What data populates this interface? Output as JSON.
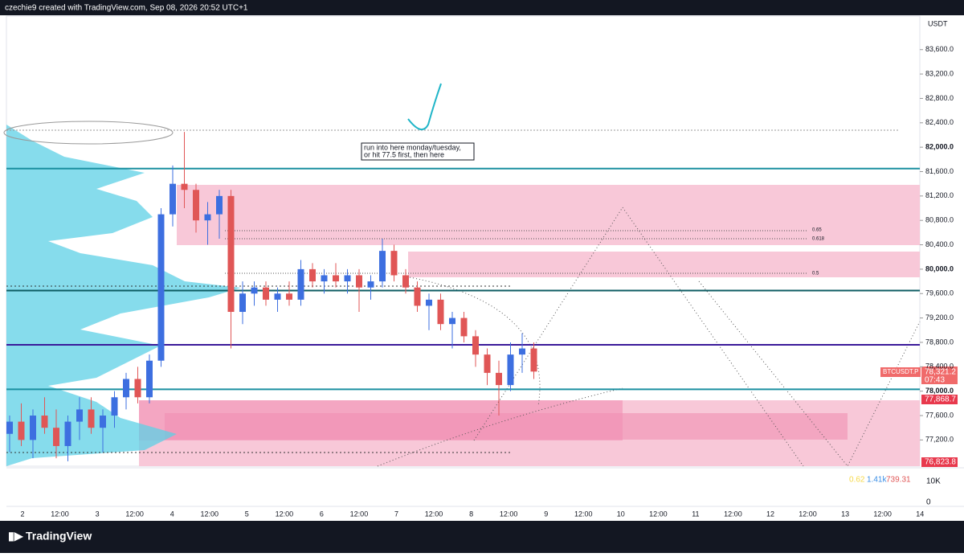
{
  "header": "czechie9 created with TradingView.com, Sep 08, 2026 20:52 UTC+1",
  "footer": "TradingView",
  "chart_data": {
    "type": "candlestick",
    "currency": "USDT",
    "ylim": [
      76770,
      84150
    ],
    "yticks": [
      {
        "value": 77200,
        "label": "77,200.0"
      },
      {
        "value": 77600,
        "label": "77,600.0"
      },
      {
        "value": 78000,
        "label": "78,000.0"
      },
      {
        "value": 78400,
        "label": "78,400.0"
      },
      {
        "value": 78800,
        "label": "78,800.0"
      },
      {
        "value": 79200,
        "label": "79,200.0"
      },
      {
        "value": 79600,
        "label": "79,600.0"
      },
      {
        "value": 80000,
        "label": "80,000.0"
      },
      {
        "value": 80400,
        "label": "80,400.0"
      },
      {
        "value": 80800,
        "label": "80,800.0"
      },
      {
        "value": 81200,
        "label": "81,200.0"
      },
      {
        "value": 81600,
        "label": "81,600.0"
      },
      {
        "value": 82000,
        "label": "82,000.0"
      },
      {
        "value": 82400,
        "label": "82,400.0"
      },
      {
        "value": 82800,
        "label": "82,800.0"
      },
      {
        "value": 83200,
        "label": "83,200.0"
      },
      {
        "value": 83600,
        "label": "83,600.0"
      }
    ],
    "time_labels": [
      "2",
      "12:00",
      "3",
      "12:00",
      "4",
      "12:00",
      "5",
      "12:00",
      "6",
      "12:00",
      "7",
      "12:00",
      "8",
      "12:00",
      "9",
      "12:00",
      "10",
      "12:00",
      "11",
      "12:00",
      "12",
      "12:00",
      "13",
      "12:00",
      "14"
    ],
    "up_color": "#3d6fe0",
    "down_color": "#e05656",
    "ohlc": [
      [
        77300,
        77600,
        77000,
        77500
      ],
      [
        77500,
        77800,
        77100,
        77200
      ],
      [
        77200,
        77700,
        76900,
        77600
      ],
      [
        77600,
        77900,
        77300,
        77400
      ],
      [
        77400,
        77700,
        76900,
        77100
      ],
      [
        77100,
        77600,
        76850,
        77500
      ],
      [
        77500,
        77900,
        77200,
        77700
      ],
      [
        77700,
        77900,
        77300,
        77400
      ],
      [
        77400,
        77700,
        77000,
        77600
      ],
      [
        77600,
        78000,
        77400,
        77900
      ],
      [
        77900,
        78300,
        77700,
        78200
      ],
      [
        78200,
        78400,
        77800,
        77900
      ],
      [
        77900,
        78600,
        77800,
        78500
      ],
      [
        78500,
        81000,
        78400,
        80900
      ],
      [
        80900,
        81700,
        80700,
        81400
      ],
      [
        81400,
        82250,
        81000,
        81300
      ],
      [
        81300,
        81400,
        80600,
        80800
      ],
      [
        80800,
        81100,
        80400,
        80900
      ],
      [
        80900,
        81300,
        80500,
        81200
      ],
      [
        81200,
        81300,
        78700,
        79300
      ],
      [
        79300,
        79800,
        79100,
        79600
      ],
      [
        79600,
        79800,
        79400,
        79700
      ],
      [
        79700,
        79800,
        79400,
        79500
      ],
      [
        79500,
        79700,
        79300,
        79600
      ],
      [
        79600,
        79800,
        79400,
        79500
      ],
      [
        79500,
        80150,
        79400,
        80000
      ],
      [
        80000,
        80100,
        79700,
        79800
      ],
      [
        79800,
        80000,
        79600,
        79900
      ],
      [
        79900,
        80100,
        79700,
        79800
      ],
      [
        79800,
        80000,
        79600,
        79900
      ],
      [
        79900,
        80000,
        79300,
        79700
      ],
      [
        79700,
        79900,
        79500,
        79800
      ],
      [
        79800,
        80500,
        79700,
        80300
      ],
      [
        80300,
        80400,
        79800,
        79900
      ],
      [
        79900,
        80000,
        79600,
        79700
      ],
      [
        79700,
        79800,
        79300,
        79400
      ],
      [
        79400,
        79600,
        79000,
        79500
      ],
      [
        79500,
        79600,
        79000,
        79100
      ],
      [
        79100,
        79300,
        78700,
        79200
      ],
      [
        79200,
        79300,
        78800,
        78900
      ],
      [
        78900,
        79000,
        78400,
        78600
      ],
      [
        78600,
        78700,
        78100,
        78300
      ],
      [
        78300,
        78500,
        77600,
        78100
      ],
      [
        78100,
        78800,
        78000,
        78600
      ],
      [
        78600,
        78950,
        78300,
        78700
      ],
      [
        78700,
        78800,
        78200,
        78321.2
      ]
    ],
    "levels": [
      {
        "value": 81650,
        "color": "#1a8fa0"
      },
      {
        "value": 79650,
        "color": "#0d5c63"
      },
      {
        "value": 78760,
        "color": "#3a1a9a"
      },
      {
        "value": 78030,
        "color": "#1a8fa0"
      }
    ],
    "fib_labels": [
      "0.65",
      "0.618",
      "0.5"
    ],
    "annotation": [
      "run into here monday/tuesday,",
      "or hit 77.5 first, then here"
    ],
    "price_tags": {
      "symbol": "BTCUSDT.P",
      "last": "78,321.2",
      "countdown": "07:43",
      "level_a": "77,868.7",
      "level_b": "76,823.8"
    },
    "volume_ticks": [
      "10K",
      "0"
    ],
    "volume_stats": [
      "0.62",
      "1.41k",
      "739.31"
    ]
  }
}
